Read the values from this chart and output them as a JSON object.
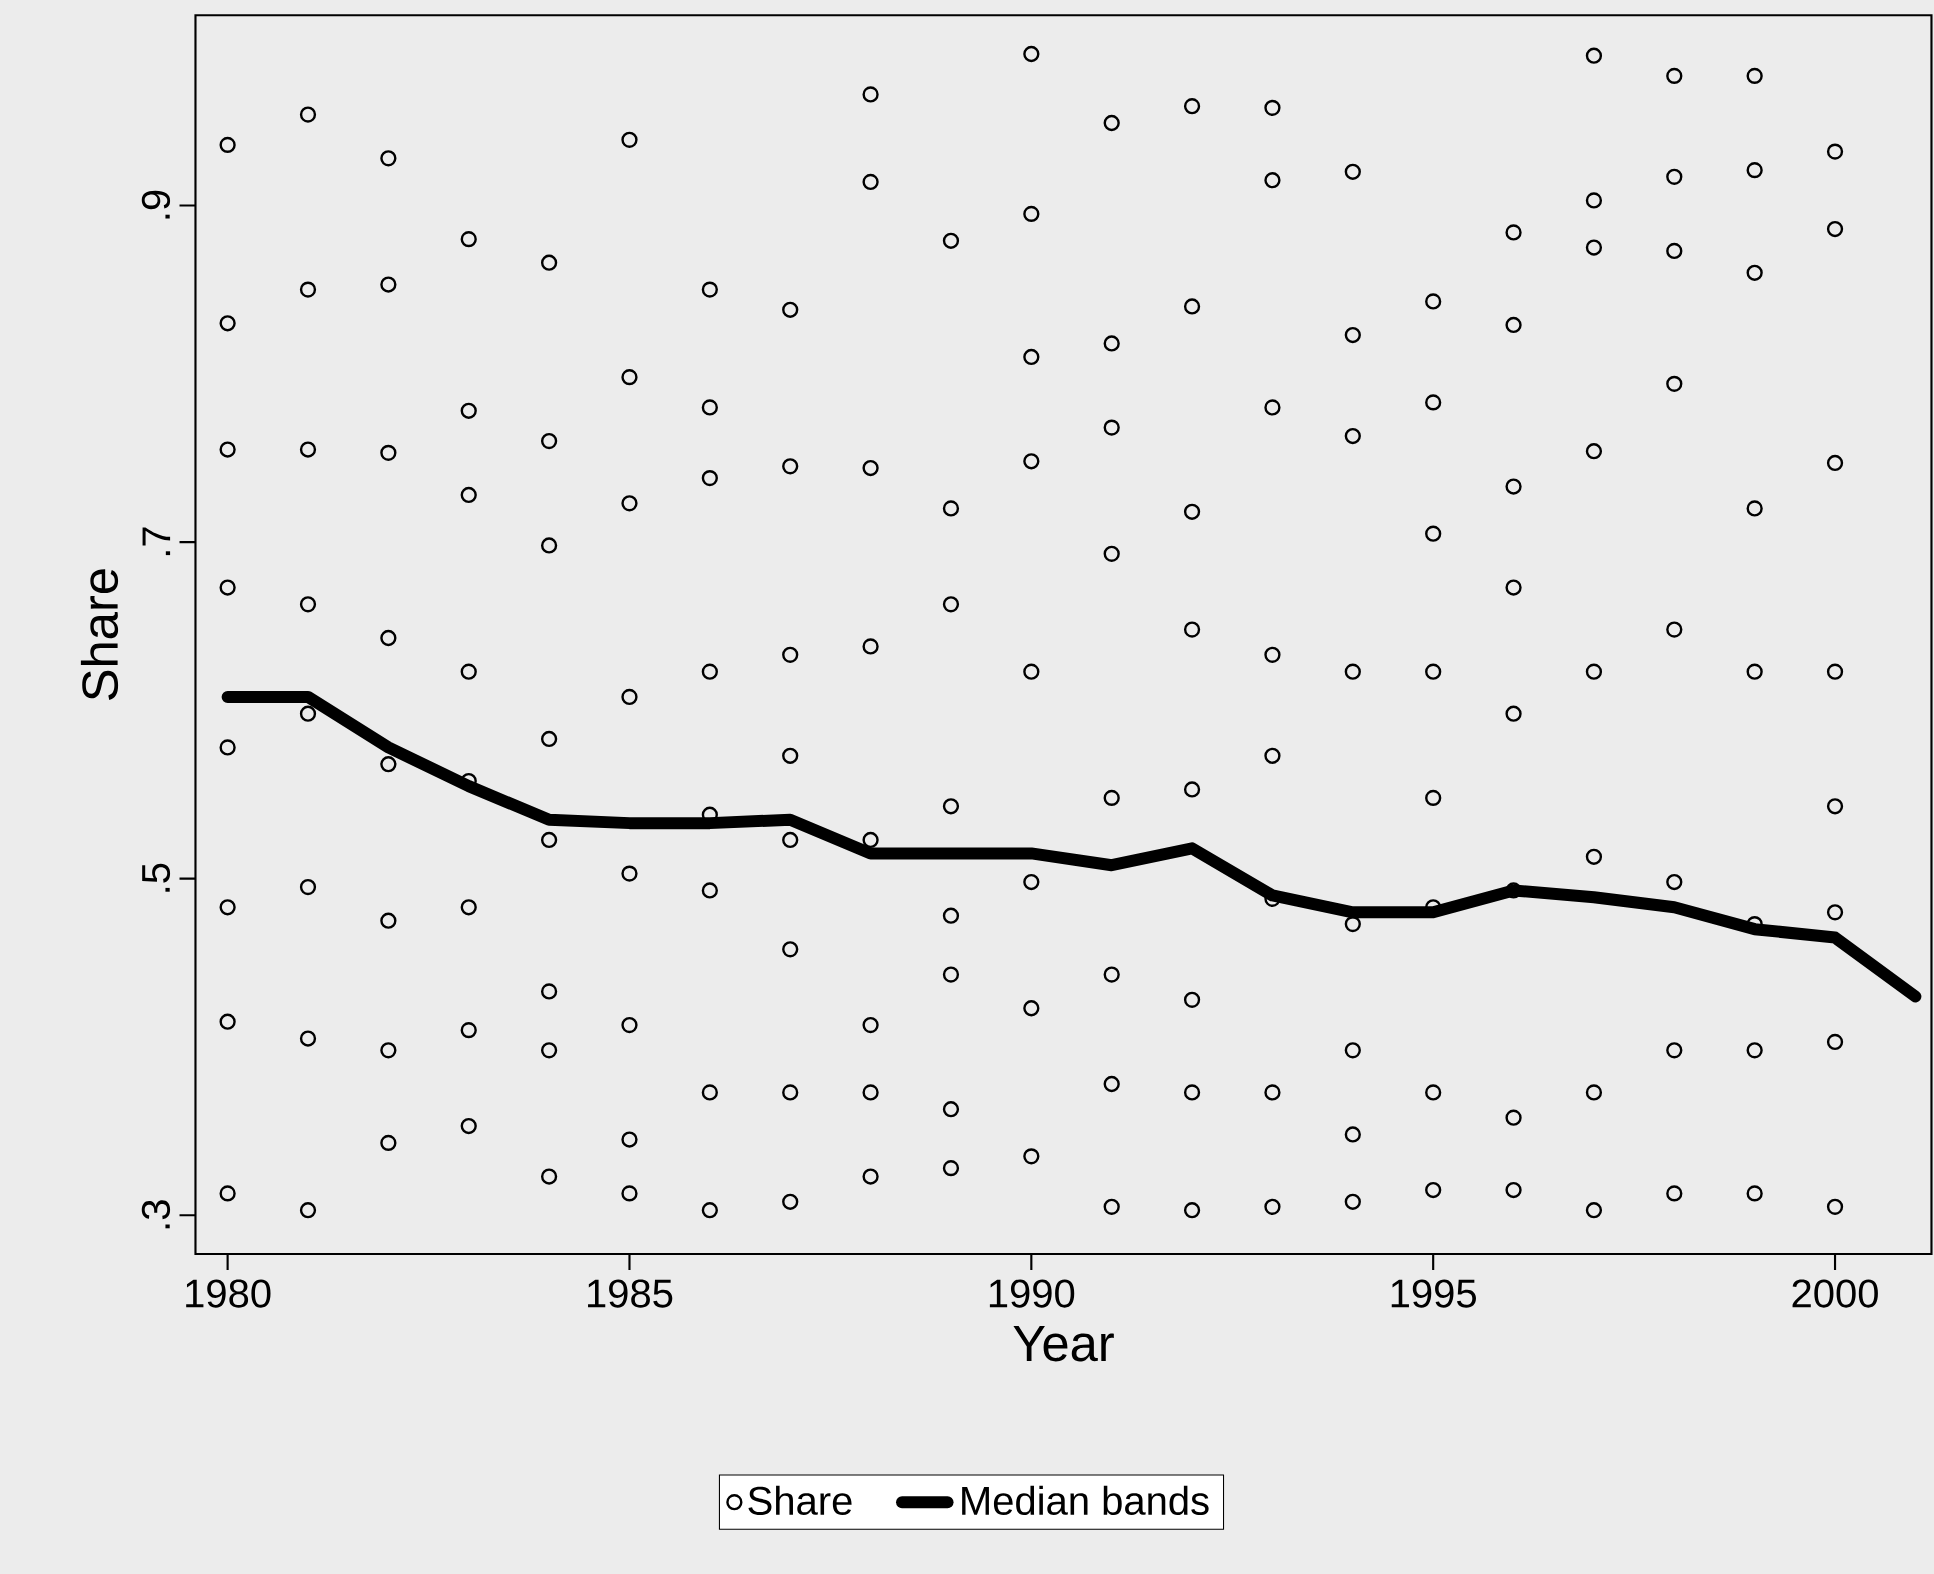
{
  "chart_data": {
    "type": "scatter",
    "xlabel": "Year",
    "ylabel": "Share",
    "xlim": [
      1979.6,
      2001.2
    ],
    "ylim": [
      0.277,
      1.013
    ],
    "xticks": [
      1980,
      1985,
      1990,
      1995,
      2000
    ],
    "yticks": [
      {
        "value": 0.3,
        "label": ".3"
      },
      {
        "value": 0.5,
        "label": ".5"
      },
      {
        "value": 0.7,
        "label": ".7"
      },
      {
        "value": 0.9,
        "label": ".9"
      }
    ],
    "legend": "bottom",
    "series": [
      {
        "name": "Share",
        "type": "scatter",
        "marker": "circle",
        "color": "#000000",
        "x": [
          1980,
          1980,
          1980,
          1980,
          1980,
          1980,
          1980,
          1980,
          1981,
          1981,
          1981,
          1981,
          1981,
          1981,
          1981,
          1981,
          1982,
          1982,
          1982,
          1982,
          1982,
          1982,
          1982,
          1982,
          1983,
          1983,
          1983,
          1983,
          1983,
          1983,
          1983,
          1983,
          1984,
          1984,
          1984,
          1984,
          1984,
          1984,
          1984,
          1984,
          1985,
          1985,
          1985,
          1985,
          1985,
          1985,
          1985,
          1985,
          1986,
          1986,
          1986,
          1986,
          1986,
          1986,
          1986,
          1986,
          1987,
          1987,
          1987,
          1987,
          1987,
          1987,
          1987,
          1987,
          1988,
          1988,
          1988,
          1988,
          1988,
          1988,
          1988,
          1988,
          1989,
          1989,
          1989,
          1989,
          1989,
          1989,
          1989,
          1989,
          1990,
          1990,
          1990,
          1990,
          1990,
          1990,
          1990,
          1990,
          1991,
          1991,
          1991,
          1991,
          1991,
          1991,
          1991,
          1991,
          1992,
          1992,
          1992,
          1992,
          1992,
          1992,
          1992,
          1992,
          1993,
          1993,
          1993,
          1993,
          1993,
          1993,
          1993,
          1993,
          1994,
          1994,
          1994,
          1994,
          1994,
          1994,
          1994,
          1994,
          1995,
          1995,
          1995,
          1995,
          1995,
          1995,
          1995,
          1995,
          1996,
          1996,
          1996,
          1996,
          1996,
          1996,
          1996,
          1996,
          1997,
          1997,
          1997,
          1997,
          1997,
          1997,
          1997,
          1997,
          1998,
          1998,
          1998,
          1998,
          1998,
          1998,
          1998,
          1998,
          1999,
          1999,
          1999,
          1999,
          1999,
          1999,
          1999,
          1999,
          2000,
          2000,
          2000,
          2000,
          2000,
          2000,
          2000,
          2000
        ],
        "values": [
          0.936,
          0.83,
          0.755,
          0.673,
          0.578,
          0.483,
          0.415,
          0.313,
          0.954,
          0.85,
          0.755,
          0.663,
          0.598,
          0.495,
          0.405,
          0.303,
          0.928,
          0.853,
          0.753,
          0.643,
          0.568,
          0.475,
          0.398,
          0.343,
          0.88,
          0.778,
          0.728,
          0.623,
          0.558,
          0.483,
          0.41,
          0.353,
          0.866,
          0.76,
          0.698,
          0.583,
          0.523,
          0.433,
          0.398,
          0.323,
          0.939,
          0.798,
          0.723,
          0.608,
          0.503,
          0.413,
          0.345,
          0.313,
          0.85,
          0.78,
          0.738,
          0.623,
          0.538,
          0.493,
          0.373,
          0.303,
          0.838,
          0.745,
          0.633,
          0.573,
          0.523,
          0.458,
          0.373,
          0.308,
          0.966,
          0.914,
          0.744,
          0.638,
          0.523,
          0.413,
          0.373,
          0.323,
          0.879,
          0.72,
          0.663,
          0.543,
          0.478,
          0.443,
          0.363,
          0.328,
          0.99,
          0.895,
          0.81,
          0.748,
          0.623,
          0.498,
          0.423,
          0.335,
          0.949,
          0.818,
          0.768,
          0.693,
          0.548,
          0.443,
          0.378,
          0.305,
          0.959,
          0.84,
          0.718,
          0.648,
          0.553,
          0.428,
          0.373,
          0.303,
          0.958,
          0.915,
          0.78,
          0.633,
          0.573,
          0.488,
          0.373,
          0.305,
          0.92,
          0.823,
          0.763,
          0.623,
          0.473,
          0.398,
          0.348,
          0.308,
          0.843,
          0.783,
          0.705,
          0.623,
          0.548,
          0.483,
          0.373,
          0.315,
          0.884,
          0.829,
          0.733,
          0.673,
          0.598,
          0.493,
          0.358,
          0.315,
          0.989,
          0.903,
          0.875,
          0.754,
          0.623,
          0.513,
          0.373,
          0.303,
          0.977,
          0.917,
          0.873,
          0.794,
          0.648,
          0.498,
          0.398,
          0.313,
          0.977,
          0.921,
          0.86,
          0.72,
          0.623,
          0.473,
          0.398,
          0.313,
          0.932,
          0.886,
          0.747,
          0.623,
          0.543,
          0.48,
          0.403,
          0.305
        ]
      },
      {
        "name": "Median bands",
        "type": "line",
        "marker": "none",
        "line_style": "solid",
        "color": "#000000",
        "x": [
          1980,
          1981,
          1982,
          1983,
          1984,
          1985,
          1986,
          1987,
          1988,
          1989,
          1990,
          1991,
          1992,
          1993,
          1994,
          1995,
          1996,
          1997,
          1998,
          1999,
          2000,
          2001
        ],
        "values": [
          0.608,
          0.608,
          0.578,
          0.555,
          0.535,
          0.533,
          0.533,
          0.535,
          0.515,
          0.515,
          0.515,
          0.508,
          0.518,
          0.49,
          0.48,
          0.48,
          0.493,
          0.489,
          0.483,
          0.47,
          0.465,
          0.43
        ]
      }
    ]
  }
}
